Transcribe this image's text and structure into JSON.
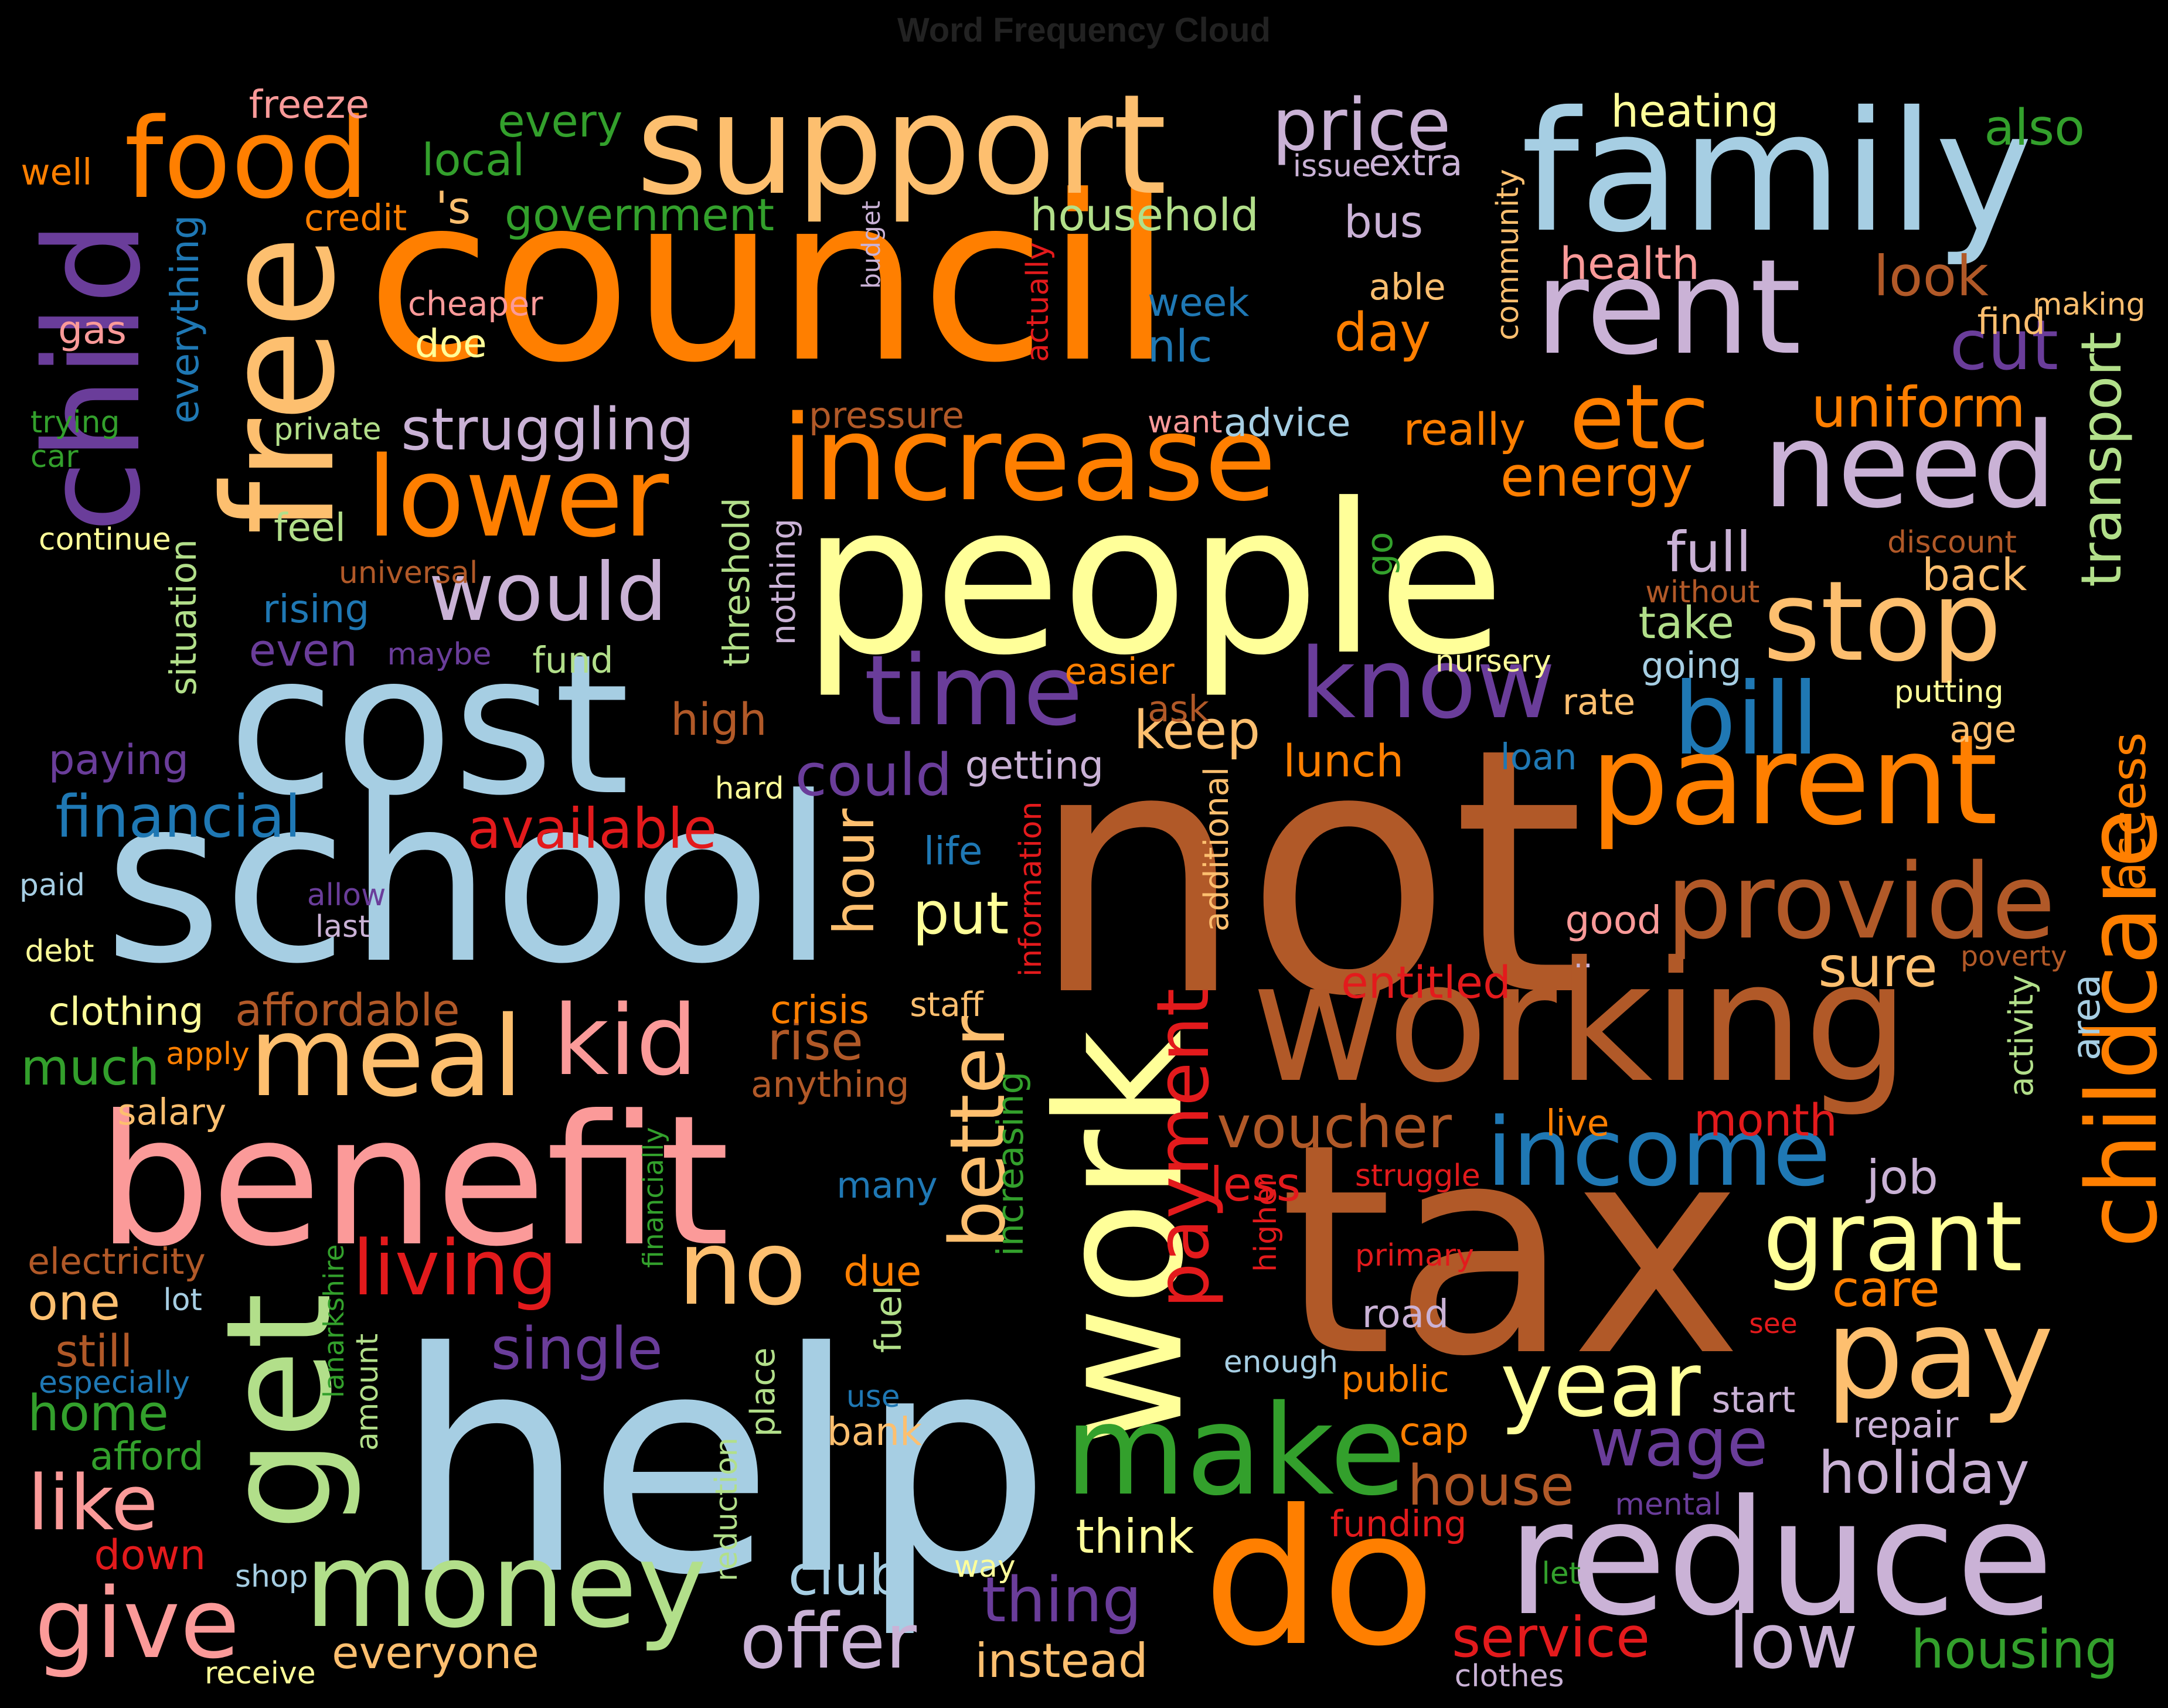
{
  "title": "Word Frequency Cloud",
  "palette": {
    "orange": "#FF7F00",
    "light_orange": "#FDBF6F",
    "blue": "#1F78B4",
    "light_blue": "#A6CEE3",
    "purple": "#6A3D9A",
    "lavender": "#CAB2D6",
    "brown": "#B15928",
    "yellow": "#FFFF99",
    "green": "#33A02C",
    "light_green": "#B2DF8A",
    "pink": "#FB9A99",
    "red": "#E31A1C"
  },
  "words": [
    {
      "text": "council",
      "color": "orange"
    },
    {
      "text": "not",
      "color": "brown"
    },
    {
      "text": "help",
      "color": "light_blue"
    },
    {
      "text": "people",
      "color": "yellow"
    },
    {
      "text": "tax",
      "color": "brown"
    },
    {
      "text": "school",
      "color": "light_blue"
    },
    {
      "text": "benefit",
      "color": "pink"
    },
    {
      "text": "cost",
      "color": "light_blue"
    },
    {
      "text": "family",
      "color": "light_blue"
    },
    {
      "text": "support",
      "color": "light_orange"
    },
    {
      "text": "child",
      "color": "purple"
    },
    {
      "text": "working",
      "color": "brown"
    },
    {
      "text": "reduce",
      "color": "lavender"
    },
    {
      "text": "do",
      "color": "orange"
    },
    {
      "text": "work",
      "color": "yellow"
    },
    {
      "text": "free",
      "color": "light_orange"
    },
    {
      "text": "increase",
      "color": "orange"
    },
    {
      "text": "rent",
      "color": "lavender"
    },
    {
      "text": "parent",
      "color": "orange"
    },
    {
      "text": "get",
      "color": "light_green"
    },
    {
      "text": "make",
      "color": "green"
    },
    {
      "text": "money",
      "color": "light_green"
    },
    {
      "text": "meal",
      "color": "light_orange"
    },
    {
      "text": "lower",
      "color": "orange"
    },
    {
      "text": "food",
      "color": "orange"
    },
    {
      "text": "need",
      "color": "lavender"
    },
    {
      "text": "provide",
      "color": "brown"
    },
    {
      "text": "stop",
      "color": "light_orange"
    },
    {
      "text": "pay",
      "color": "light_orange"
    },
    {
      "text": "childcare",
      "color": "orange"
    },
    {
      "text": "income",
      "color": "blue"
    },
    {
      "text": "know",
      "color": "purple"
    },
    {
      "text": "time",
      "color": "purple"
    },
    {
      "text": "grant",
      "color": "yellow"
    },
    {
      "text": "no",
      "color": "light_orange"
    },
    {
      "text": "give",
      "color": "pink"
    },
    {
      "text": "better",
      "color": "light_orange"
    },
    {
      "text": "payment",
      "color": "red"
    },
    {
      "text": "price",
      "color": "lavender"
    },
    {
      "text": "bill",
      "color": "blue"
    },
    {
      "text": "kid",
      "color": "pink"
    },
    {
      "text": "etc",
      "color": "orange"
    },
    {
      "text": "year",
      "color": "yellow"
    },
    {
      "text": "would",
      "color": "lavender"
    },
    {
      "text": "offer",
      "color": "lavender"
    },
    {
      "text": "like",
      "color": "pink"
    },
    {
      "text": "living",
      "color": "red"
    },
    {
      "text": "low",
      "color": "lavender"
    },
    {
      "text": "struggling",
      "color": "lavender"
    },
    {
      "text": "financial",
      "color": "blue"
    },
    {
      "text": "voucher",
      "color": "brown"
    },
    {
      "text": "wage",
      "color": "purple"
    },
    {
      "text": "uniform",
      "color": "orange"
    },
    {
      "text": "cut",
      "color": "purple"
    },
    {
      "text": "thing",
      "color": "purple"
    },
    {
      "text": "service",
      "color": "red"
    },
    {
      "text": "holiday",
      "color": "lavender"
    },
    {
      "text": "energy",
      "color": "orange"
    },
    {
      "text": "single",
      "color": "purple"
    },
    {
      "text": "could",
      "color": "purple"
    },
    {
      "text": "available",
      "color": "red"
    },
    {
      "text": "house",
      "color": "brown"
    },
    {
      "text": "club",
      "color": "light_blue"
    },
    {
      "text": "housing",
      "color": "green"
    },
    {
      "text": "full",
      "color": "lavender"
    },
    {
      "text": "household",
      "color": "light_green"
    },
    {
      "text": "transport",
      "color": "light_green"
    },
    {
      "text": "hour",
      "color": "light_orange"
    },
    {
      "text": "look",
      "color": "brown"
    },
    {
      "text": "rise",
      "color": "brown"
    },
    {
      "text": "day",
      "color": "orange"
    },
    {
      "text": "sure",
      "color": "light_orange"
    },
    {
      "text": "keep",
      "color": "light_orange"
    },
    {
      "text": "affordable",
      "color": "brown"
    },
    {
      "text": "put",
      "color": "yellow"
    },
    {
      "text": "care",
      "color": "orange"
    },
    {
      "text": "entitled",
      "color": "red"
    },
    {
      "text": "access",
      "color": "orange"
    },
    {
      "text": "heating",
      "color": "yellow"
    },
    {
      "text": "also",
      "color": "green"
    },
    {
      "text": "month",
      "color": "red"
    },
    {
      "text": "much",
      "color": "green"
    },
    {
      "text": "think",
      "color": "yellow"
    },
    {
      "text": "instead",
      "color": "light_orange"
    },
    {
      "text": "everyone",
      "color": "light_orange"
    },
    {
      "text": "home",
      "color": "green"
    },
    {
      "text": "one",
      "color": "light_orange"
    },
    {
      "text": "job",
      "color": "lavender"
    },
    {
      "text": "less",
      "color": "red"
    },
    {
      "text": "government",
      "color": "green"
    },
    {
      "text": "freeze",
      "color": "pink"
    },
    {
      "text": "health",
      "color": "pink"
    },
    {
      "text": "back",
      "color": "light_orange"
    },
    {
      "text": "take",
      "color": "light_green"
    },
    {
      "text": "lunch",
      "color": "orange"
    },
    {
      "text": "high",
      "color": "brown"
    },
    {
      "text": "bus",
      "color": "lavender"
    },
    {
      "text": "even",
      "color": "purple"
    },
    {
      "text": "really",
      "color": "orange"
    },
    {
      "text": "everything",
      "color": "blue"
    },
    {
      "text": "situation",
      "color": "light_green"
    },
    {
      "text": "threshold",
      "color": "light_green"
    },
    {
      "text": "additional",
      "color": "light_orange"
    },
    {
      "text": "increasing",
      "color": "green"
    },
    {
      "text": "information",
      "color": "red"
    },
    {
      "text": "actually",
      "color": "red"
    },
    {
      "text": "community",
      "color": "light_orange"
    },
    {
      "text": "area",
      "color": "light_blue"
    },
    {
      "text": "activity",
      "color": "light_green"
    },
    {
      "text": "reduction",
      "color": "light_green"
    },
    {
      "text": "place",
      "color": "light_green"
    },
    {
      "text": "amount",
      "color": "light_green"
    },
    {
      "text": "nothing",
      "color": "lavender"
    },
    {
      "text": "fuel",
      "color": "light_green"
    },
    {
      "text": "higher",
      "color": "red"
    },
    {
      "text": "go",
      "color": "green"
    },
    {
      "text": "lanarkshire",
      "color": "green"
    },
    {
      "text": "financially",
      "color": "green"
    },
    {
      "text": "budget",
      "color": "lavender"
    },
    {
      "text": "every",
      "color": "green"
    },
    {
      "text": "local",
      "color": "green"
    },
    {
      "text": "'s",
      "color": "light_orange"
    },
    {
      "text": "issue",
      "color": "lavender"
    },
    {
      "text": "extra",
      "color": "lavender"
    },
    {
      "text": "credit",
      "color": "orange"
    },
    {
      "text": "well",
      "color": "orange"
    },
    {
      "text": "gas",
      "color": "pink"
    },
    {
      "text": "cheaper",
      "color": "pink"
    },
    {
      "text": "doe",
      "color": "yellow"
    },
    {
      "text": "week",
      "color": "blue"
    },
    {
      "text": "nlc",
      "color": "blue"
    },
    {
      "text": "able",
      "color": "light_orange"
    },
    {
      "text": "find",
      "color": "light_orange"
    },
    {
      "text": "making",
      "color": "light_orange"
    },
    {
      "text": "trying",
      "color": "green"
    },
    {
      "text": "car",
      "color": "green"
    },
    {
      "text": "private",
      "color": "light_green"
    },
    {
      "text": "pressure",
      "color": "brown"
    },
    {
      "text": "want",
      "color": "pink"
    },
    {
      "text": "advice",
      "color": "light_blue"
    },
    {
      "text": "continue",
      "color": "yellow"
    },
    {
      "text": "feel",
      "color": "light_green"
    },
    {
      "text": "universal",
      "color": "brown"
    },
    {
      "text": "rising",
      "color": "blue"
    },
    {
      "text": "maybe",
      "color": "purple"
    },
    {
      "text": "fund",
      "color": "light_green"
    },
    {
      "text": "discount",
      "color": "brown"
    },
    {
      "text": "without",
      "color": "brown"
    },
    {
      "text": "nursery",
      "color": "yellow"
    },
    {
      "text": "going",
      "color": "light_blue"
    },
    {
      "text": "easier",
      "color": "orange"
    },
    {
      "text": "ask",
      "color": "brown"
    },
    {
      "text": "rate",
      "color": "light_orange"
    },
    {
      "text": "putting",
      "color": "yellow"
    },
    {
      "text": "age",
      "color": "light_orange"
    },
    {
      "text": "paying",
      "color": "purple"
    },
    {
      "text": "getting",
      "color": "lavender"
    },
    {
      "text": "loan",
      "color": "blue"
    },
    {
      "text": "hard",
      "color": "yellow"
    },
    {
      "text": "life",
      "color": "blue"
    },
    {
      "text": "paid",
      "color": "light_blue"
    },
    {
      "text": "allow",
      "color": "purple"
    },
    {
      "text": "last",
      "color": "lavender"
    },
    {
      "text": "good",
      "color": "pink"
    },
    {
      "text": "debt",
      "color": "yellow"
    },
    {
      "text": "..",
      "color": "lavender"
    },
    {
      "text": "poverty",
      "color": "brown"
    },
    {
      "text": "clothing",
      "color": "yellow"
    },
    {
      "text": "crisis",
      "color": "orange"
    },
    {
      "text": "staff",
      "color": "light_orange"
    },
    {
      "text": "apply",
      "color": "orange"
    },
    {
      "text": "anything",
      "color": "brown"
    },
    {
      "text": "salary",
      "color": "light_orange"
    },
    {
      "text": "live",
      "color": "orange"
    },
    {
      "text": "struggle",
      "color": "red"
    },
    {
      "text": "many",
      "color": "blue"
    },
    {
      "text": "electricity",
      "color": "brown"
    },
    {
      "text": "primary",
      "color": "red"
    },
    {
      "text": "due",
      "color": "orange"
    },
    {
      "text": "lot",
      "color": "light_blue"
    },
    {
      "text": "road",
      "color": "lavender"
    },
    {
      "text": "see",
      "color": "red"
    },
    {
      "text": "still",
      "color": "brown"
    },
    {
      "text": "enough",
      "color": "light_blue"
    },
    {
      "text": "especially",
      "color": "blue"
    },
    {
      "text": "public",
      "color": "orange"
    },
    {
      "text": "start",
      "color": "lavender"
    },
    {
      "text": "use",
      "color": "blue"
    },
    {
      "text": "bank",
      "color": "light_orange"
    },
    {
      "text": "cap",
      "color": "orange"
    },
    {
      "text": "repair",
      "color": "lavender"
    },
    {
      "text": "afford",
      "color": "green"
    },
    {
      "text": "mental",
      "color": "purple"
    },
    {
      "text": "funding",
      "color": "red"
    },
    {
      "text": "down",
      "color": "red"
    },
    {
      "text": "let",
      "color": "green"
    },
    {
      "text": "shop",
      "color": "light_blue"
    },
    {
      "text": "way",
      "color": "yellow"
    },
    {
      "text": "receive",
      "color": "yellow"
    },
    {
      "text": "clothes",
      "color": "lavender"
    }
  ]
}
